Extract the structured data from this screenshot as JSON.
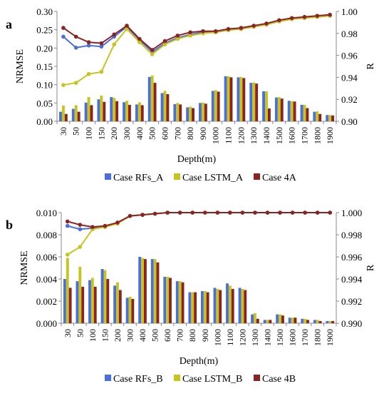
{
  "panels": {
    "a": {
      "label": "a"
    },
    "b": {
      "label": "b"
    }
  },
  "chart_data": [
    {
      "type": "bar",
      "panel": "a",
      "categories": [
        "30",
        "50",
        "100",
        "150",
        "200",
        "300",
        "400",
        "500",
        "600",
        "700",
        "800",
        "900",
        "1000",
        "1100",
        "1200",
        "1300",
        "1400",
        "1500",
        "1600",
        "1700",
        "1800",
        "1900"
      ],
      "xlabel": "Depth(m)",
      "ylabel": "NRMSE",
      "y2label": "R",
      "ylim": [
        0,
        0.3
      ],
      "yticks": [
        "0.00",
        "0.05",
        "0.10",
        "0.15",
        "0.20",
        "0.25",
        "0.30"
      ],
      "y2lim": [
        0.9,
        1.0
      ],
      "y2ticks": [
        "0.90",
        "0.92",
        "0.94",
        "0.96",
        "0.98",
        "1.00"
      ],
      "grid": false,
      "legend_position": "bottom",
      "series": [
        {
          "name": "Case RFs_A",
          "color": "#4a6fdc",
          "bars": [
            0.026,
            0.034,
            0.051,
            0.06,
            0.066,
            0.052,
            0.046,
            0.121,
            0.077,
            0.047,
            0.038,
            0.05,
            0.083,
            0.123,
            0.12,
            0.105,
            0.082,
            0.065,
            0.056,
            0.045,
            0.026,
            0.017
          ],
          "line": [
            0.977,
            0.967,
            0.969,
            0.968,
            0.977,
            0.986,
            0.974,
            0.963,
            0.971,
            0.976,
            0.979,
            0.981,
            0.981,
            0.983,
            0.984,
            0.986,
            0.988,
            0.991,
            0.993,
            0.994,
            0.995,
            0.996
          ]
        },
        {
          "name": "Case LSTM_A",
          "color": "#c8c41e",
          "bars": [
            0.043,
            0.044,
            0.066,
            0.07,
            0.064,
            0.056,
            0.052,
            0.125,
            0.083,
            0.05,
            0.04,
            0.051,
            0.085,
            0.123,
            0.121,
            0.106,
            0.082,
            0.066,
            0.055,
            0.045,
            0.027,
            0.017
          ],
          "line": [
            0.933,
            0.935,
            0.943,
            0.945,
            0.97,
            0.984,
            0.972,
            0.961,
            0.97,
            0.975,
            0.978,
            0.98,
            0.981,
            0.983,
            0.984,
            0.986,
            0.988,
            0.991,
            0.993,
            0.994,
            0.995,
            0.996
          ]
        },
        {
          "name": "Case 4A",
          "color": "#8b2323",
          "bars": [
            0.02,
            0.026,
            0.044,
            0.053,
            0.055,
            0.045,
            0.044,
            0.105,
            0.074,
            0.046,
            0.036,
            0.048,
            0.081,
            0.12,
            0.118,
            0.103,
            0.035,
            0.062,
            0.054,
            0.036,
            0.02,
            0.016
          ],
          "line": [
            0.985,
            0.977,
            0.972,
            0.971,
            0.979,
            0.987,
            0.975,
            0.965,
            0.973,
            0.978,
            0.981,
            0.982,
            0.982,
            0.984,
            0.985,
            0.987,
            0.989,
            0.992,
            0.994,
            0.995,
            0.996,
            0.997
          ]
        }
      ]
    },
    {
      "type": "bar",
      "panel": "b",
      "categories": [
        "30",
        "50",
        "100",
        "150",
        "200",
        "300",
        "400",
        "500",
        "600",
        "700",
        "800",
        "900",
        "1000",
        "1100",
        "1200",
        "1300",
        "1400",
        "1500",
        "1600",
        "1700",
        "1800",
        "1900"
      ],
      "xlabel": "Depth(m)",
      "ylabel": "NRMSE",
      "y2label": "R",
      "ylim": [
        0,
        0.01
      ],
      "yticks": [
        "0.000",
        "0.002",
        "0.004",
        "0.006",
        "0.008",
        "0.010"
      ],
      "y2lim": [
        0.99,
        1.0
      ],
      "y2ticks": [
        "0.990",
        "0.992",
        "0.994",
        "0.996",
        "0.998",
        "1.000"
      ],
      "grid": false,
      "legend_position": "bottom",
      "series": [
        {
          "name": "Case RFs_B",
          "color": "#4a6fdc",
          "bars": [
            0.004,
            0.0038,
            0.0039,
            0.0049,
            0.0034,
            0.0023,
            0.006,
            0.0058,
            0.0042,
            0.0038,
            0.0028,
            0.0029,
            0.0032,
            0.0036,
            0.0032,
            0.0008,
            0.0003,
            0.0008,
            0.0005,
            0.0004,
            0.0003,
            0.0002
          ],
          "line": [
            0.9988,
            0.9985,
            0.9986,
            0.9987,
            0.9991,
            0.9997,
            0.9998,
            0.9999,
            1.0,
            1.0,
            1.0,
            1.0,
            1.0,
            1.0,
            1.0,
            1.0,
            1.0,
            1.0,
            1.0,
            1.0,
            1.0,
            1.0
          ]
        },
        {
          "name": "Case LSTM_B",
          "color": "#c8c41e",
          "bars": [
            0.0059,
            0.0051,
            0.0041,
            0.0048,
            0.0037,
            0.0024,
            0.0059,
            0.0058,
            0.0042,
            0.0038,
            0.0028,
            0.0029,
            0.0031,
            0.0034,
            0.0031,
            0.0009,
            0.0003,
            0.0008,
            0.0005,
            0.0004,
            0.0003,
            0.0002
          ],
          "line": [
            0.9962,
            0.9969,
            0.9985,
            0.9987,
            0.999,
            0.9997,
            0.9998,
            0.9999,
            1.0,
            1.0,
            1.0,
            1.0,
            1.0,
            1.0,
            1.0,
            1.0,
            1.0,
            1.0,
            1.0,
            1.0,
            1.0,
            1.0
          ]
        },
        {
          "name": "Case 4B",
          "color": "#8b2323",
          "bars": [
            0.0032,
            0.0033,
            0.0033,
            0.004,
            0.003,
            0.0022,
            0.0058,
            0.0055,
            0.0041,
            0.0037,
            0.0028,
            0.0028,
            0.003,
            0.0031,
            0.003,
            0.0004,
            0.0003,
            0.0007,
            0.0005,
            0.0003,
            0.0002,
            0.0002
          ],
          "line": [
            0.9992,
            0.9989,
            0.9987,
            0.9988,
            0.9991,
            0.9997,
            0.9998,
            0.9999,
            1.0,
            1.0,
            1.0,
            1.0,
            1.0,
            1.0,
            1.0,
            1.0,
            1.0,
            1.0,
            1.0,
            1.0,
            1.0,
            1.0
          ]
        }
      ]
    }
  ]
}
